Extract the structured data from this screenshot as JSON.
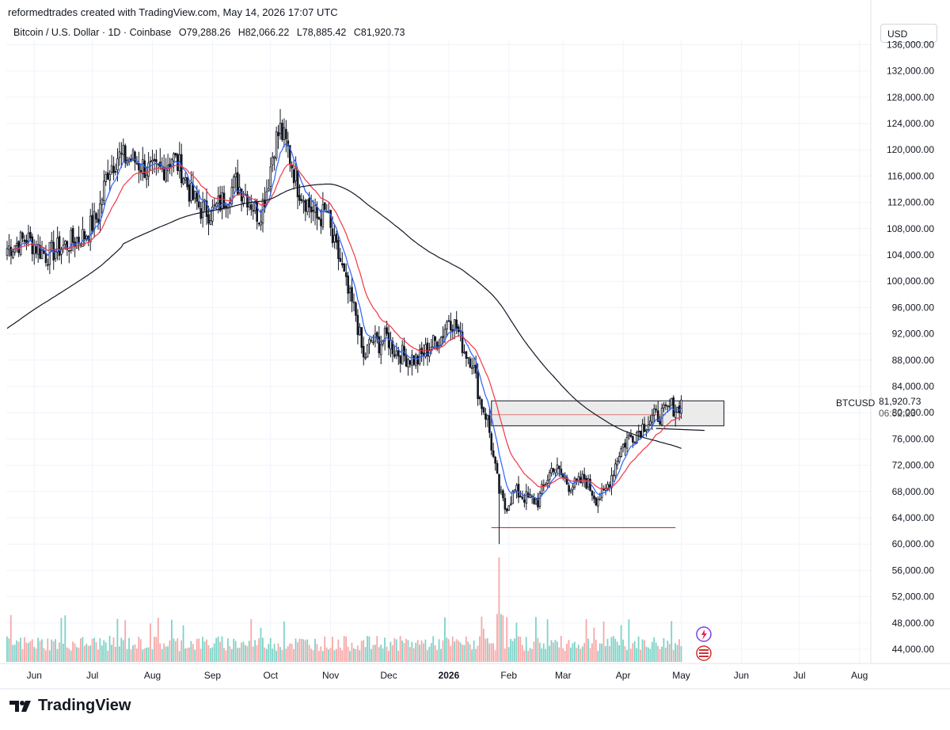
{
  "header": {
    "caption": "reformedtrades created with TradingView.com, May 14, 2026 17:07 UTC",
    "symbol": "Bitcoin / U.S. Dollar · 1D · Coinbase",
    "open": "O79,288.26",
    "high": "H82,066.22",
    "low": "L78,885.42",
    "close": "C81,920.73",
    "currency": "USD"
  },
  "price_label": {
    "ticker": "BTCUSD",
    "price": "81,920.73",
    "countdown": "06:52:23"
  },
  "footer": {
    "brand": "TradingView"
  },
  "colors": {
    "candle": "#131722",
    "ema_fast": "#2962ff",
    "ema_slow": "#f23645",
    "sma_long": "#131722",
    "vol_up": "#7dd3c8",
    "vol_down": "#f7a8a8",
    "zone_fill": "#e6e6e6",
    "support": "#d32f2f"
  },
  "chart_data": {
    "type": "candlestick",
    "y_axis": {
      "ticks": [
        "136,000.00",
        "132,000.00",
        "128,000.00",
        "124,000.00",
        "120,000.00",
        "116,000.00",
        "112,000.00",
        "108,000.00",
        "104,000.00",
        "100,000.00",
        "96,000.00",
        "92,000.00",
        "88,000.00",
        "84,000.00",
        "80,000.00",
        "76,000.00",
        "72,000.00",
        "68,000.00",
        "64,000.00",
        "60,000.00",
        "56,000.00",
        "52,000.00",
        "48,000.00",
        "44,000.00"
      ],
      "range": [
        42000,
        137500
      ]
    },
    "x_axis": {
      "labels": [
        "Jun",
        "Jul",
        "Aug",
        "Sep",
        "Oct",
        "Nov",
        "Dec",
        "2026",
        "Feb",
        "Mar",
        "Apr",
        "May",
        "Jun",
        "Jul",
        "Aug"
      ],
      "label_days": [
        14,
        44,
        75,
        106,
        136,
        167,
        197,
        228,
        259,
        287,
        318,
        348,
        379,
        409,
        440
      ],
      "start": "2025-05-19",
      "range_days": [
        0,
        450
      ]
    },
    "price_path": [
      [
        0,
        105000
      ],
      [
        10,
        106500
      ],
      [
        20,
        104000
      ],
      [
        30,
        105500
      ],
      [
        40,
        107000
      ],
      [
        47,
        110000
      ],
      [
        52,
        117000
      ],
      [
        57,
        119000
      ],
      [
        65,
        118500
      ],
      [
        75,
        116500
      ],
      [
        80,
        117000
      ],
      [
        85,
        119000
      ],
      [
        90,
        117000
      ],
      [
        95,
        113000
      ],
      [
        100,
        111000
      ],
      [
        106,
        110500
      ],
      [
        112,
        112500
      ],
      [
        118,
        115000
      ],
      [
        124,
        113000
      ],
      [
        130,
        110000
      ],
      [
        134,
        114000
      ],
      [
        138,
        121000
      ],
      [
        141,
        123000
      ],
      [
        145,
        120000
      ],
      [
        150,
        114500
      ],
      [
        156,
        111500
      ],
      [
        160,
        109500
      ],
      [
        165,
        110500
      ],
      [
        168,
        106000
      ],
      [
        172,
        103000
      ],
      [
        176,
        98000
      ],
      [
        180,
        95000
      ],
      [
        184,
        88000
      ],
      [
        188,
        91000
      ],
      [
        192,
        90500
      ],
      [
        196,
        91500
      ],
      [
        200,
        89500
      ],
      [
        206,
        88500
      ],
      [
        212,
        88000
      ],
      [
        218,
        90000
      ],
      [
        224,
        91500
      ],
      [
        228,
        94500
      ],
      [
        232,
        93000
      ],
      [
        236,
        89500
      ],
      [
        240,
        88000
      ],
      [
        244,
        82000
      ],
      [
        248,
        79000
      ],
      [
        251,
        73000
      ],
      [
        254,
        68000
      ],
      [
        257,
        65500
      ],
      [
        262,
        68000
      ],
      [
        268,
        67000
      ],
      [
        274,
        66500
      ],
      [
        278,
        69500
      ],
      [
        282,
        72000
      ],
      [
        286,
        70500
      ],
      [
        290,
        69000
      ],
      [
        294,
        69000
      ],
      [
        298,
        70000
      ],
      [
        304,
        67000
      ],
      [
        308,
        67500
      ],
      [
        312,
        70500
      ],
      [
        316,
        74000
      ],
      [
        320,
        76000
      ],
      [
        325,
        77000
      ],
      [
        330,
        78500
      ],
      [
        335,
        79500
      ],
      [
        339,
        79800
      ],
      [
        343,
        81000
      ],
      [
        346,
        80500
      ],
      [
        348,
        81920
      ]
    ],
    "high_low_extremes": {
      "high": 126200,
      "low": 60000
    },
    "volume_spike_day": 254,
    "annotations": {
      "zone": {
        "from_day": 250,
        "to_day": 370,
        "low": 78000,
        "high": 81800
      },
      "support_line": {
        "from_day": 250,
        "to_day": 345,
        "price": 62500
      },
      "zone_midline": {
        "from_day": 250,
        "to_day": 340,
        "price": 79700
      }
    },
    "indicators": [
      {
        "type": "EMA fast",
        "color": "#2962ff"
      },
      {
        "type": "EMA slow",
        "color": "#f23645"
      },
      {
        "type": "SMA long",
        "color": "#131722"
      }
    ]
  }
}
